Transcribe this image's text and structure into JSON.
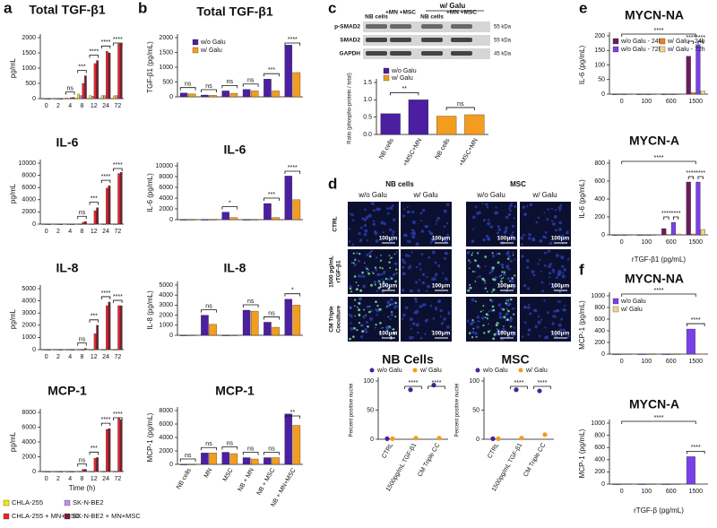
{
  "chart_data": [
    {
      "type": "bar",
      "panel": "a",
      "title": "Total TGF-β1",
      "ylabel": "pg/mL",
      "categories": [
        "0",
        "2",
        "4",
        "8",
        "12",
        "24",
        "72"
      ],
      "series": [
        {
          "color": "#f5e400",
          "values": [
            0,
            0,
            20,
            150,
            100,
            100,
            90
          ]
        },
        {
          "color": "#c98fe0",
          "values": [
            0,
            0,
            10,
            100,
            80,
            100,
            100
          ]
        },
        {
          "color": "#e8262a",
          "values": [
            0,
            0,
            30,
            500,
            1150,
            1550,
            1800
          ]
        },
        {
          "color": "#7b1c2e",
          "values": [
            0,
            0,
            40,
            750,
            1250,
            1500,
            1800
          ]
        }
      ],
      "ylim": [
        0,
        2000
      ],
      "yticks": [
        0,
        500,
        1000,
        1500,
        2000
      ],
      "annotations": [
        "ns",
        "***",
        "****",
        "****",
        "****"
      ]
    },
    {
      "type": "bar",
      "title": "IL-6",
      "ylabel": "pg/mL",
      "categories": [
        "0",
        "2",
        "4",
        "8",
        "12",
        "24",
        "72"
      ],
      "series": [
        {
          "color": "#f5e400",
          "values": [
            0,
            0,
            0,
            0,
            0,
            0,
            0
          ]
        },
        {
          "color": "#c98fe0",
          "values": [
            0,
            0,
            0,
            0,
            0,
            0,
            0
          ]
        },
        {
          "color": "#e8262a",
          "values": [
            0,
            0,
            0,
            300,
            2200,
            5900,
            8300
          ]
        },
        {
          "color": "#7b1c2e",
          "values": [
            0,
            0,
            0,
            400,
            2700,
            6300,
            8500
          ]
        }
      ],
      "ylim": [
        0,
        10000
      ],
      "yticks": [
        0,
        2000,
        4000,
        6000,
        8000,
        10000
      ],
      "annotations": [
        "ns",
        "***",
        "****",
        "****"
      ]
    },
    {
      "type": "bar",
      "title": "IL-8",
      "ylabel": "pg/mL",
      "categories": [
        "0",
        "2",
        "4",
        "8",
        "12",
        "24",
        "72"
      ],
      "series": [
        {
          "color": "#f5e400",
          "values": [
            0,
            0,
            0,
            0,
            0,
            0,
            0
          ]
        },
        {
          "color": "#c98fe0",
          "values": [
            0,
            0,
            0,
            0,
            0,
            0,
            0
          ]
        },
        {
          "color": "#e8262a",
          "values": [
            0,
            0,
            0,
            0,
            1300,
            3600,
            3600
          ]
        },
        {
          "color": "#7b1c2e",
          "values": [
            0,
            0,
            0,
            100,
            2000,
            3900,
            3600
          ]
        }
      ],
      "ylim": [
        0,
        5000
      ],
      "yticks": [
        0,
        1000,
        2000,
        3000,
        4000,
        5000
      ],
      "annotations": [
        "ns",
        "***",
        "****",
        "****"
      ]
    },
    {
      "type": "bar",
      "title": "MCP-1",
      "ylabel": "pg/mL",
      "xlabel": "Time (h)",
      "categories": [
        "0",
        "2",
        "4",
        "8",
        "12",
        "24",
        "72"
      ],
      "series": [
        {
          "name": "CHLA-255",
          "color": "#f5e400",
          "values": [
            0,
            0,
            0,
            0,
            0,
            0,
            0
          ]
        },
        {
          "name": "SK-N-BE2",
          "color": "#c98fe0",
          "values": [
            0,
            0,
            0,
            0,
            0,
            0,
            0
          ]
        },
        {
          "name": "CHLA-255 + MN+MSC",
          "color": "#e8262a",
          "values": [
            0,
            0,
            0,
            300,
            1800,
            5700,
            7200
          ]
        },
        {
          "name": "SK-N-BE2 + MN+MSC",
          "color": "#7b1c2e",
          "values": [
            0,
            0,
            0,
            300,
            1900,
            5800,
            7000
          ]
        }
      ],
      "ylim": [
        0,
        8000
      ],
      "yticks": [
        0,
        2000,
        4000,
        6000,
        8000
      ],
      "annotations": [
        "ns",
        "***",
        "****",
        "****"
      ]
    },
    {
      "type": "bar",
      "panel": "b",
      "title": "Total TGF-β1",
      "ylabel": "TGF-β1 (pg/mL)",
      "series": [
        {
          "name": "w/o Galu",
          "color": "#4b1fa0",
          "values": [
            130,
            60,
            200,
            250,
            600,
            1750
          ]
        },
        {
          "name": "w/ Galu",
          "color": "#f39c1f",
          "values": [
            100,
            50,
            120,
            200,
            200,
            820
          ]
        }
      ],
      "ylim": [
        0,
        2000
      ],
      "yticks": [
        0,
        500,
        1000,
        1500,
        2000
      ],
      "annotations": [
        "ns",
        "ns",
        "ns",
        "ns",
        "***",
        "****"
      ]
    },
    {
      "type": "bar",
      "title": "IL-6",
      "ylabel": "IL-6 (pg/mL)",
      "series": [
        {
          "color": "#4b1fa0",
          "values": [
            0,
            0,
            1400,
            0,
            3000,
            8100
          ]
        },
        {
          "color": "#f39c1f",
          "values": [
            0,
            0,
            400,
            0,
            400,
            3700
          ]
        }
      ],
      "ylim": [
        0,
        10000
      ],
      "yticks": [
        0,
        2000,
        4000,
        6000,
        8000,
        10000
      ],
      "annotations": [
        "*",
        "***",
        "****"
      ]
    },
    {
      "type": "bar",
      "title": "IL-8",
      "ylabel": "IL-8 (pg/mL)",
      "series": [
        {
          "color": "#4b1fa0",
          "values": [
            0,
            2000,
            0,
            2500,
            1300,
            3600
          ]
        },
        {
          "color": "#f39c1f",
          "values": [
            0,
            1100,
            0,
            2400,
            800,
            3000
          ]
        }
      ],
      "ylim": [
        0,
        5000
      ],
      "yticks": [
        0,
        1000,
        2000,
        3000,
        4000,
        5000
      ],
      "annotations": [
        "ns",
        "ns",
        "ns",
        "*"
      ]
    },
    {
      "type": "bar",
      "title": "MCP-1",
      "ylabel": "MCP-1 (pg/mL)",
      "categories": [
        "NB cells",
        "MN",
        "MSC",
        "NB + MN",
        "NB + MSC",
        "NB + MN+MSC"
      ],
      "series": [
        {
          "color": "#4b1fa0",
          "values": [
            0,
            1700,
            1800,
            1000,
            1000,
            7500
          ]
        },
        {
          "color": "#f39c1f",
          "values": [
            0,
            1700,
            1600,
            800,
            1000,
            5800
          ]
        }
      ],
      "ylim": [
        0,
        8000
      ],
      "yticks": [
        0,
        2000,
        4000,
        6000,
        8000
      ],
      "annotations": [
        "ns",
        "ns",
        "ns",
        "ns",
        "ns",
        "**"
      ]
    },
    {
      "type": "bar",
      "panel": "c",
      "ylabel": "Ratio (phospho-protein / total)",
      "categories": [
        "NB cells",
        "+MSC+MN",
        "NB cells",
        "+MSC+MN"
      ],
      "series": [
        {
          "name": "w/o Galu",
          "color": "#4b1fa0",
          "values": [
            0.6,
            1.0,
            null,
            null
          ]
        },
        {
          "name": "w/ Galu",
          "color": "#f39c1f",
          "values": [
            null,
            null,
            0.53,
            0.57
          ]
        }
      ],
      "ylim": [
        0,
        1.5
      ],
      "yticks": [
        {
          "value": 0,
          "label": "0.0"
        },
        0.5,
        {
          "value": 1,
          "label": "1.0"
        },
        1.5
      ],
      "annotations": [
        "**",
        "ns"
      ]
    },
    {
      "type": "strip",
      "panel": "d",
      "title": "NB Cells",
      "ylabel": "Percent positive nuclei",
      "categories": [
        "CTRL",
        "1500pg/mL TGF-β1",
        "CM Triple CC"
      ],
      "series": [
        {
          "name": "w/o Galu",
          "color": "#4b1fa0",
          "values": [
            1,
            85,
            93
          ]
        },
        {
          "name": "w/ Galu",
          "color": "#f39c1f",
          "values": [
            1,
            2,
            2
          ]
        }
      ],
      "ylim": [
        0,
        100
      ],
      "yticks": [
        0,
        50,
        100
      ],
      "annotations": [
        "****",
        "****"
      ]
    },
    {
      "type": "strip",
      "title": "MSC",
      "ylabel": "Percent positive nuclei",
      "categories": [
        "CTRL",
        "1500pg/mL TGF-β1",
        "CM Triple CC"
      ],
      "series": [
        {
          "name": "w/o Galu",
          "color": "#4b1fa0",
          "values": [
            1,
            85,
            83
          ]
        },
        {
          "name": "w/ Galu",
          "color": "#f39c1f",
          "values": [
            1,
            2,
            8
          ]
        }
      ],
      "ylim": [
        0,
        100
      ],
      "yticks": [
        0,
        50,
        100
      ],
      "annotations": [
        "****",
        "****"
      ]
    },
    {
      "type": "bar",
      "panel": "e",
      "title": "MYCN-NA",
      "ylabel": "IL-6 (pg/mL)",
      "categories": [
        "0",
        "100",
        "600",
        "1500"
      ],
      "series": [
        {
          "name": "w/o Galu - 24h",
          "color": "#6a1b5e",
          "values": [
            0,
            0,
            0,
            130
          ]
        },
        {
          "name": "w/ Galu - 24h",
          "color": "#f08020",
          "values": [
            0,
            0,
            0,
            5
          ]
        },
        {
          "name": "w/o Galu - 72h",
          "color": "#7a40e8",
          "values": [
            0,
            0,
            0,
            170
          ]
        },
        {
          "name": "w/ Galu - 72h",
          "color": "#f3d28a",
          "values": [
            0,
            0,
            0,
            10
          ]
        }
      ],
      "ylim": [
        0,
        200
      ],
      "yticks": [
        0,
        50,
        100,
        150,
        200
      ],
      "annotations": [
        "****",
        "****",
        "****"
      ]
    },
    {
      "type": "bar",
      "title": "MYCN-A",
      "ylabel": "IL-6 (pg/mL)",
      "xlabel": "rTGF-β1 (pg/mL)",
      "categories": [
        "0",
        "100",
        "600",
        "1500"
      ],
      "series": [
        {
          "color": "#6a1b5e",
          "values": [
            0,
            0,
            70,
            590
          ]
        },
        {
          "color": "#f08020",
          "values": [
            0,
            0,
            5,
            10
          ]
        },
        {
          "color": "#7a40e8",
          "values": [
            0,
            0,
            140,
            590
          ]
        },
        {
          "color": "#f3d28a",
          "values": [
            0,
            0,
            10,
            60
          ]
        }
      ],
      "ylim": [
        0,
        800
      ],
      "yticks": [
        0,
        200,
        400,
        600,
        800
      ],
      "annotations": [
        "****",
        "****",
        "****",
        "****",
        "****"
      ]
    },
    {
      "type": "bar",
      "panel": "f",
      "title": "MYCN-NA",
      "ylabel": "MCP-1 (pg/mL)",
      "categories": [
        "0",
        "100",
        "600",
        "1500"
      ],
      "series": [
        {
          "name": "w/o Galu",
          "color": "#7a40e8",
          "values": [
            0,
            0,
            0,
            430
          ]
        },
        {
          "name": "w/ Galu",
          "color": "#f3d28a",
          "values": [
            0,
            0,
            0,
            5
          ]
        }
      ],
      "ylim": [
        0,
        1000
      ],
      "yticks": [
        0,
        200,
        400,
        600,
        800,
        1000
      ],
      "annotations": [
        "****",
        "****"
      ]
    },
    {
      "type": "bar",
      "title": "MYCN-A",
      "ylabel": "MCP-1 (pg/mL)",
      "xlabel": "rTGF-β (pg/mL)",
      "categories": [
        "0",
        "100",
        "600",
        "1500"
      ],
      "series": [
        {
          "color": "#7a40e8",
          "values": [
            0,
            0,
            0,
            450
          ]
        },
        {
          "color": "#f3d28a",
          "values": [
            0,
            0,
            0,
            5
          ]
        }
      ],
      "ylim": [
        0,
        1000
      ],
      "yticks": [
        0,
        200,
        400,
        600,
        800,
        1000
      ],
      "annotations": [
        "****",
        "****"
      ]
    }
  ],
  "blot": {
    "group": "w/ Galu",
    "lanes": [
      "NB cells",
      "+MN +MSC",
      "NB cells",
      "+MN +MSC"
    ],
    "rows": [
      "p-SMAD2",
      "SMAD2",
      "GAPDH"
    ],
    "kda": [
      "55 kDa",
      "55 kDa",
      "45 kDa"
    ]
  },
  "microscopy": {
    "groups": [
      "NB cells",
      "MSC"
    ],
    "columns": [
      "w/o Galu",
      "w/ Galu",
      "w/o Galu",
      "w/ Galu"
    ],
    "rows": [
      [
        "CTRL"
      ],
      [
        "1500 pg/mL",
        "rTGF-β1"
      ],
      [
        "CM Triple",
        "Coculture"
      ]
    ],
    "scale_bar": "100μm"
  }
}
